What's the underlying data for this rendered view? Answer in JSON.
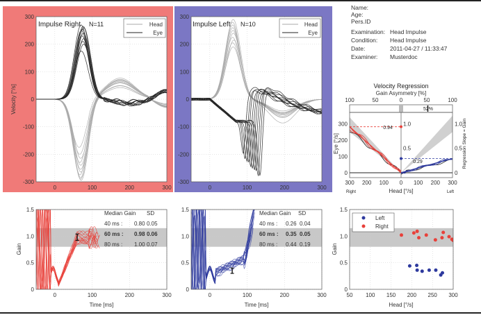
{
  "patient": {
    "rows": [
      {
        "label": "Name:",
        "value": ""
      },
      {
        "label": "Age:",
        "value": ""
      },
      {
        "label": "Pers.ID",
        "value": ""
      },
      {
        "label": "Examination:",
        "value": "Head Impulse"
      },
      {
        "label": "Condition:",
        "value": "Head Impulse"
      },
      {
        "label": "Date:",
        "value": "2011-04-27 / 11:33:47"
      },
      {
        "label": "Examiner:",
        "value": "Musterdoc"
      }
    ]
  },
  "colors": {
    "right": "#e8403a",
    "left": "#2e3a9e",
    "right_panel_bg": "#f07a78",
    "left_panel_bg": "#7b77c4",
    "head_trace": "#a8a8a8",
    "eye_trace": "#222222",
    "normal_band": "#c8c8c8"
  },
  "chart_data": [
    {
      "id": "impulse-right",
      "type": "line",
      "title": "Impulse Right",
      "n_label": "N=11",
      "ylabel": "Velocity [°/s]",
      "xlim": [
        -50,
        300
      ],
      "ylim": [
        -300,
        300
      ],
      "xticks": [
        0,
        100,
        200,
        300
      ],
      "yticks": [
        -300,
        -200,
        -100,
        0,
        100,
        200,
        300
      ],
      "grid": true,
      "legend": "top-right",
      "legend_entries": [
        "Head",
        "Eye"
      ],
      "head_peaks": [
        -175,
        -200,
        -215,
        -230,
        -240,
        -255,
        -265,
        -275,
        -285,
        -290,
        -295
      ],
      "eye_peaks": [
        175,
        200,
        210,
        220,
        230,
        240,
        250,
        255,
        260,
        265,
        270
      ]
    },
    {
      "id": "impulse-left",
      "type": "line",
      "title": "Impulse Left",
      "n_label": "N=10",
      "xlim": [
        -50,
        300
      ],
      "ylim": [
        -300,
        300
      ],
      "xticks": [
        0,
        100,
        200,
        300
      ],
      "yticks": [
        -300,
        -200,
        -100,
        0,
        100,
        200,
        300
      ],
      "grid": true,
      "legend": "top-right",
      "legend_entries": [
        "Head",
        "Eye"
      ],
      "head_peaks": [
        190,
        205,
        215,
        225,
        240,
        250,
        260,
        270,
        280,
        290
      ],
      "eye_saccade_peaks": [
        -200,
        -215,
        -225,
        -235,
        -245,
        -250,
        -260,
        -265,
        -275,
        -280
      ]
    },
    {
      "id": "velocity-regression",
      "type": "line",
      "title": "Velocity Regression",
      "top_label": "Gain Asymmetry [%]",
      "top_ticks": [
        "100",
        "50",
        "0",
        "50",
        "100"
      ],
      "asymmetry_label": "52%",
      "asymmetry": 52,
      "xlabel": "Head [°/s]",
      "ylabel": "Eye [°/s]",
      "y2label": "Regression Slope = Gain",
      "xticks": [
        "300",
        "200",
        "100",
        "0",
        "100",
        "200",
        "300"
      ],
      "yticks": [
        0,
        100,
        200,
        300
      ],
      "gain_ticks": [
        "0",
        "0.5",
        "1.0"
      ],
      "inner_ticks": [
        "0.5",
        "1.0"
      ],
      "side_labels": {
        "right": "Right",
        "left": "Left"
      },
      "right_gain": 0.94,
      "right_gain_label": "0.94",
      "left_gain": 0.29,
      "left_gain_label": "0.29"
    },
    {
      "id": "gain-right",
      "type": "line",
      "xlabel": "Time [ms]",
      "ylabel": "Gain",
      "xlim": [
        -50,
        300
      ],
      "ylim": [
        0,
        1.5
      ],
      "xticks": [
        0,
        100,
        200,
        300
      ],
      "yticks": [
        "0",
        "0.5",
        "1.0",
        "1.5"
      ],
      "normal_band": [
        0.8,
        1.15
      ],
      "table": {
        "header": [
          "Median Gain",
          "SD"
        ],
        "rows": [
          {
            "t": "40 ms :",
            "gain": "0.80",
            "sd": "0.05"
          },
          {
            "t": "60 ms :",
            "gain": "0.98",
            "sd": "0.06"
          },
          {
            "t": "80 ms :",
            "gain": "1.00",
            "sd": "0.07"
          }
        ]
      },
      "errorbar": {
        "t": 60,
        "gain": 0.98,
        "sd": 0.06
      }
    },
    {
      "id": "gain-left",
      "type": "line",
      "xlabel": "Time [ms]",
      "xlim": [
        -50,
        300
      ],
      "ylim": [
        0,
        1.5
      ],
      "xticks": [
        0,
        100,
        200,
        300
      ],
      "yticks": [
        "0",
        "0.5",
        "1.0",
        "1.5"
      ],
      "normal_band": [
        0.8,
        1.15
      ],
      "table": {
        "header": [
          "Median Gain",
          "SD"
        ],
        "rows": [
          {
            "t": "40 ms :",
            "gain": "0.26",
            "sd": "0.04"
          },
          {
            "t": "60 ms :",
            "gain": "0.35",
            "sd": "0.05"
          },
          {
            "t": "80 ms :",
            "gain": "0.44",
            "sd": "0.19"
          }
        ]
      },
      "errorbar": {
        "t": 60,
        "gain": 0.35,
        "sd": 0.05
      }
    },
    {
      "id": "gain-vs-head",
      "type": "scatter",
      "xlabel": "Head [°/s]",
      "ylabel": "Gain",
      "xlim": [
        50,
        300
      ],
      "ylim": [
        0,
        1.5
      ],
      "xticks": [
        50,
        100,
        150,
        200,
        250,
        300
      ],
      "yticks": [
        "0",
        "0.5",
        "1.0",
        "1.5"
      ],
      "normal_band": [
        0.8,
        1.15
      ],
      "legend": "top-left",
      "series": [
        {
          "name": "Left",
          "points": [
            [
              195,
              0.44
            ],
            [
              212,
              0.45
            ],
            [
              213,
              0.36
            ],
            [
              225,
              0.34
            ],
            [
              242,
              0.36
            ],
            [
              258,
              0.36
            ],
            [
              270,
              0.27
            ],
            [
              274,
              0.31
            ]
          ]
        },
        {
          "name": "Right",
          "points": [
            [
              175,
              1.02
            ],
            [
              205,
              1.06
            ],
            [
              213,
              1.09
            ],
            [
              217,
              0.97
            ],
            [
              235,
              1.02
            ],
            [
              257,
              0.93
            ],
            [
              273,
              0.97
            ],
            [
              276,
              1.07
            ],
            [
              290,
              0.99
            ],
            [
              297,
              0.94
            ],
            [
              300,
              0.92
            ]
          ]
        }
      ]
    }
  ]
}
